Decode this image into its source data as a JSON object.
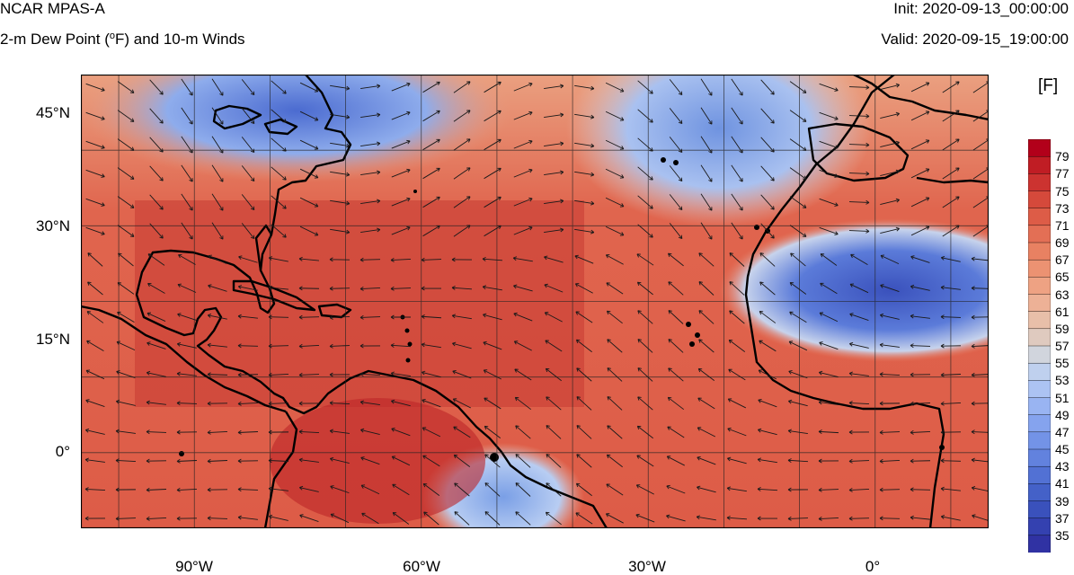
{
  "header": {
    "model": "NCAR MPAS-A",
    "field_prefix": "2-m Dew Point (",
    "field_deg": "o",
    "field_suffix": "F) and 10-m Winds",
    "init": "Init: 2020-09-13_00:00:00",
    "valid": "Valid: 2020-09-15_19:00:00"
  },
  "map": {
    "projection": "cylindrical equidistant",
    "region": "Tropical and subtropical Atlantic",
    "lon_range": [
      -105,
      15
    ],
    "lat_range": [
      -10,
      50
    ],
    "gridlines": true,
    "coastlines": true,
    "wind_vectors": true,
    "lat_ticks": [
      "45°N",
      "30°N",
      "15°N",
      "0°"
    ],
    "lon_ticks": [
      "90°W",
      "60°W",
      "30°W",
      "0°"
    ]
  },
  "colorbar": {
    "units": "[F]",
    "labels": [
      "79",
      "77",
      "75",
      "73",
      "71",
      "69",
      "67",
      "65",
      "63",
      "61",
      "59",
      "57",
      "55",
      "53",
      "51",
      "49",
      "47",
      "45",
      "43",
      "41",
      "39",
      "37",
      "35"
    ],
    "colors": [
      "#b2001a",
      "#c01d24",
      "#cc3330",
      "#d5493b",
      "#dd5c47",
      "#e36f55",
      "#e88162",
      "#ec9272",
      "#eea283",
      "#edb196",
      "#e8bfa9",
      "#dfcabf",
      "#d1d5dd",
      "#bfd0ee",
      "#acc3f3",
      "#99b4f2",
      "#85a3ee",
      "#7393e7",
      "#6282de",
      "#5271d4",
      "#4461c8",
      "#3a51bc",
      "#3441b0",
      "#3032a3"
    ],
    "min": 35,
    "max": 79
  }
}
